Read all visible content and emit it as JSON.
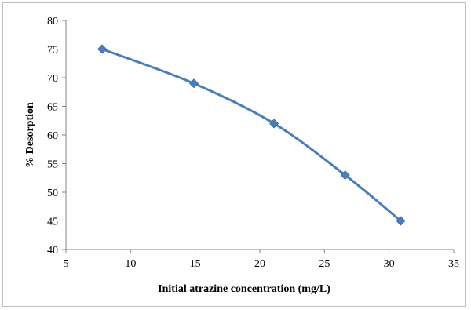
{
  "chart_data": {
    "type": "scatter",
    "title": "",
    "xlabel": "Initial atrazine concentration (mg/L)",
    "ylabel": "% Desorption",
    "xlim": [
      5,
      35
    ],
    "ylim": [
      40,
      80
    ],
    "x_ticks": [
      5,
      10,
      15,
      20,
      25,
      30,
      35
    ],
    "y_ticks": [
      40,
      45,
      50,
      55,
      60,
      65,
      70,
      75,
      80
    ],
    "grid": false,
    "legend": "none",
    "smooth_line": true,
    "marker": "diamond",
    "series": [
      {
        "x": [
          7.8,
          14.9,
          21.1,
          26.6,
          30.9
        ],
        "y": [
          75,
          69,
          62,
          53,
          45
        ],
        "color": "#4a7ebb"
      }
    ]
  }
}
